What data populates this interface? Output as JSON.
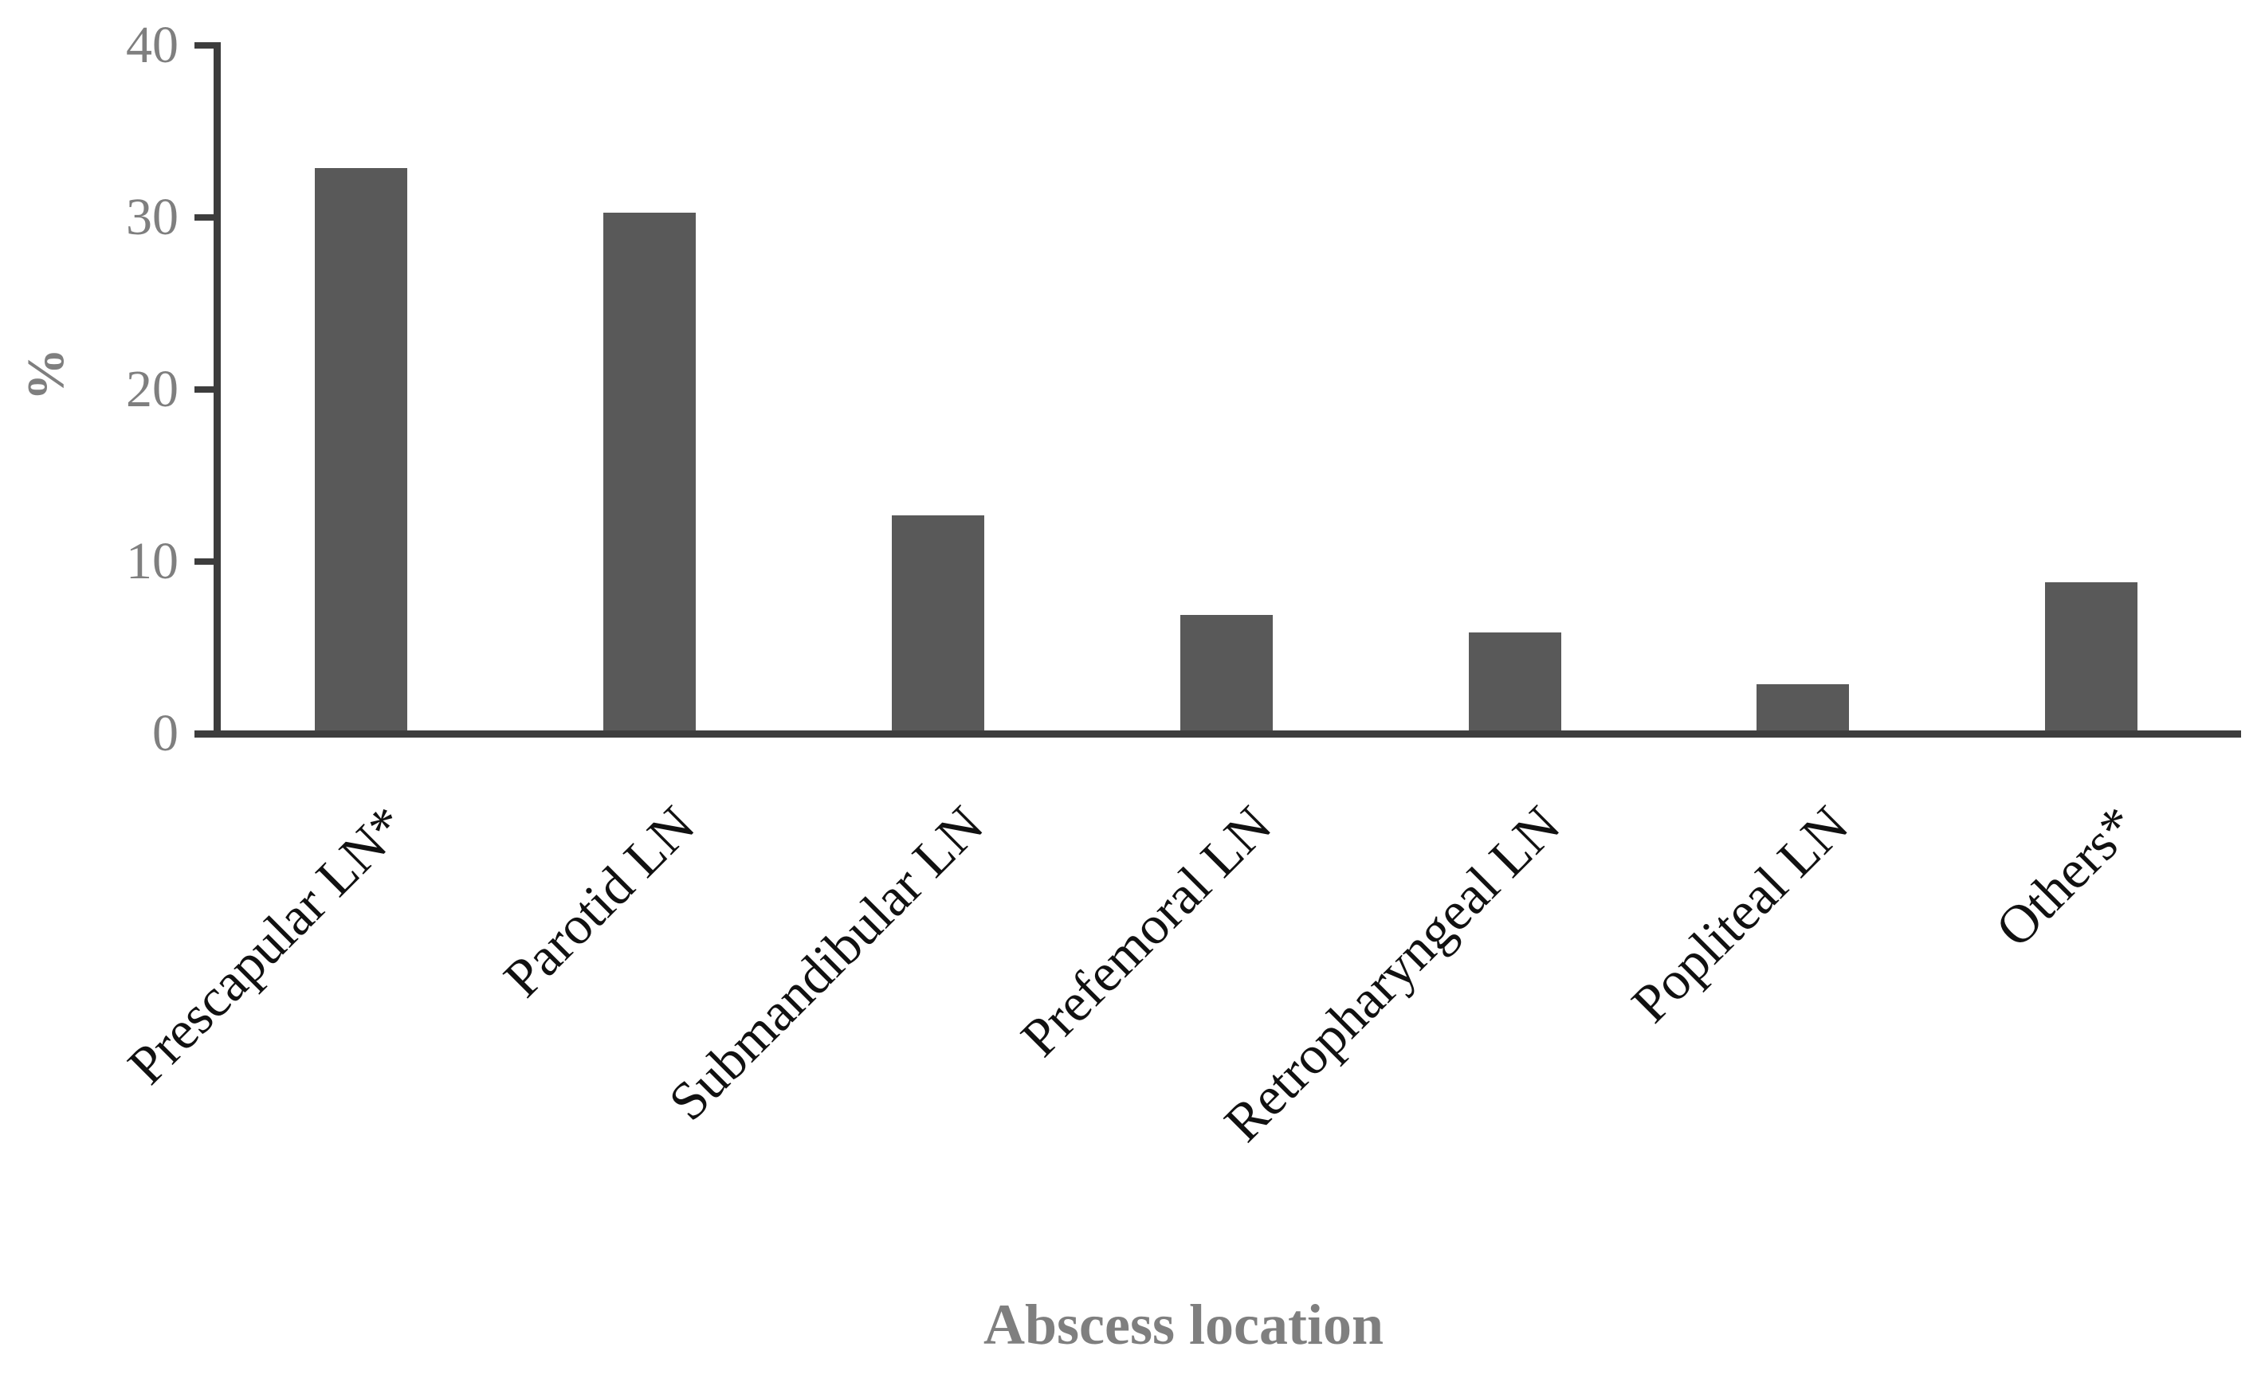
{
  "chart_data": {
    "type": "bar",
    "title": "",
    "xlabel": "Abscess location",
    "ylabel": "%",
    "categories": [
      "Prescapular LN*",
      "Parotid LN",
      "Submandibular LN",
      "Prefemoral LN",
      "Retropharyngeal LN",
      "Popliteal LN",
      "Others*"
    ],
    "values": [
      32.8,
      30.2,
      12.6,
      6.8,
      5.8,
      2.8,
      8.7
    ],
    "ylim": [
      0,
      40
    ],
    "yticks": [
      0,
      10,
      20,
      30,
      40
    ],
    "grid": false,
    "legend": "none",
    "colors": {
      "background": "#ffffff",
      "bar": "#595959",
      "axis": "#3d3d3d",
      "tick_label": "#7f7f7f",
      "axis_title": "#7f7f7f",
      "category_label": "#111111"
    }
  }
}
